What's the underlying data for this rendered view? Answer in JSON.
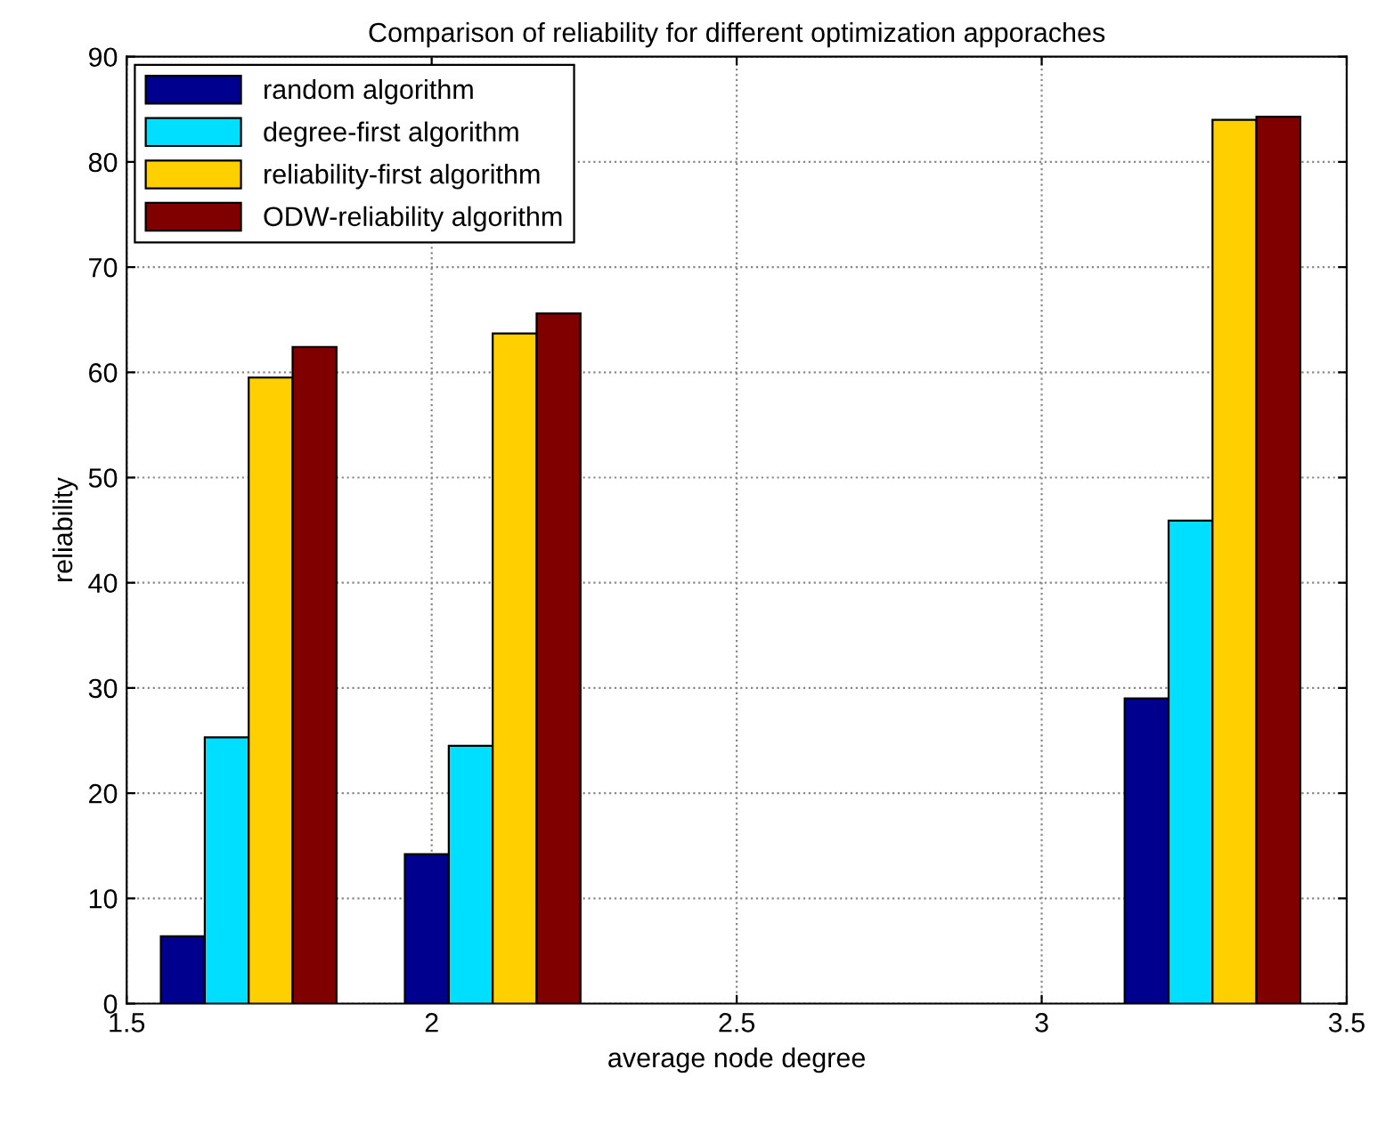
{
  "chart_data": {
    "type": "bar",
    "title": "Comparison of reliability for different optimization apporaches",
    "xlabel": "average node degree",
    "ylabel": "reliability",
    "x": [
      1.7,
      2.1,
      3.28
    ],
    "series": [
      {
        "name": "random algorithm",
        "color": "#00008f",
        "values": [
          6.4,
          14.2,
          29.0
        ]
      },
      {
        "name": "degree-first algorithm",
        "color": "#00dfff",
        "values": [
          25.3,
          24.5,
          45.9
        ]
      },
      {
        "name": "reliability-first algorithm",
        "color": "#ffcf00",
        "values": [
          59.5,
          63.7,
          84.0
        ]
      },
      {
        "name": "ODW-reliability algorithm",
        "color": "#800000",
        "values": [
          62.4,
          65.6,
          84.3
        ]
      }
    ],
    "xlim": [
      1.5,
      3.5
    ],
    "xticks": [
      1.5,
      2,
      2.5,
      3,
      3.5
    ],
    "ylim": [
      0,
      90
    ],
    "yticks": [
      0,
      10,
      20,
      30,
      40,
      50,
      60,
      70,
      80,
      90
    ],
    "grid": true,
    "legend": "top left"
  }
}
